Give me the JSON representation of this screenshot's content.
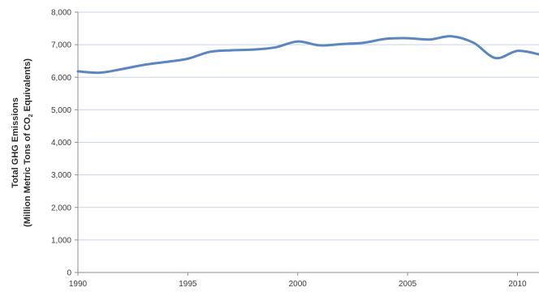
{
  "chart_data": {
    "type": "line",
    "title": "",
    "xlabel": "",
    "ylabel_line1": "Total GHG Emissions",
    "ylabel_line2_prefix": "(Million Metric Tons of CO",
    "ylabel_line2_sub": "2",
    "ylabel_line2_suffix": " Equivalents)",
    "xlim": [
      1990,
      2011
    ],
    "ylim": [
      0,
      8000
    ],
    "x_ticks": [
      1990,
      1995,
      2000,
      2005,
      2010
    ],
    "y_ticks": [
      0,
      1000,
      2000,
      3000,
      4000,
      5000,
      6000,
      7000,
      8000
    ],
    "x_tick_labels": [
      "1990",
      "1995",
      "2000",
      "2005",
      "2010"
    ],
    "y_tick_labels": [
      "0",
      "1,000",
      "2,000",
      "3,000",
      "4,000",
      "5,000",
      "6,000",
      "7,000",
      "8,000"
    ],
    "grid": "horizontal",
    "legend": "none",
    "colors": {
      "line": "#5b86bf",
      "grid": "#c9d3e3",
      "axis": "#8e8e8e"
    },
    "series": [
      {
        "x": [
          1990,
          1991,
          1992,
          1993,
          1994,
          1995,
          1996,
          1997,
          1998,
          1999,
          2000,
          2001,
          2002,
          2003,
          2004,
          2005,
          2006,
          2007,
          2008,
          2009,
          2010,
          2011
        ],
        "values": [
          6180,
          6140,
          6250,
          6380,
          6470,
          6570,
          6780,
          6830,
          6850,
          6920,
          7100,
          6980,
          7020,
          7060,
          7180,
          7200,
          7160,
          7260,
          7060,
          6590,
          6810,
          6700
        ]
      }
    ]
  }
}
